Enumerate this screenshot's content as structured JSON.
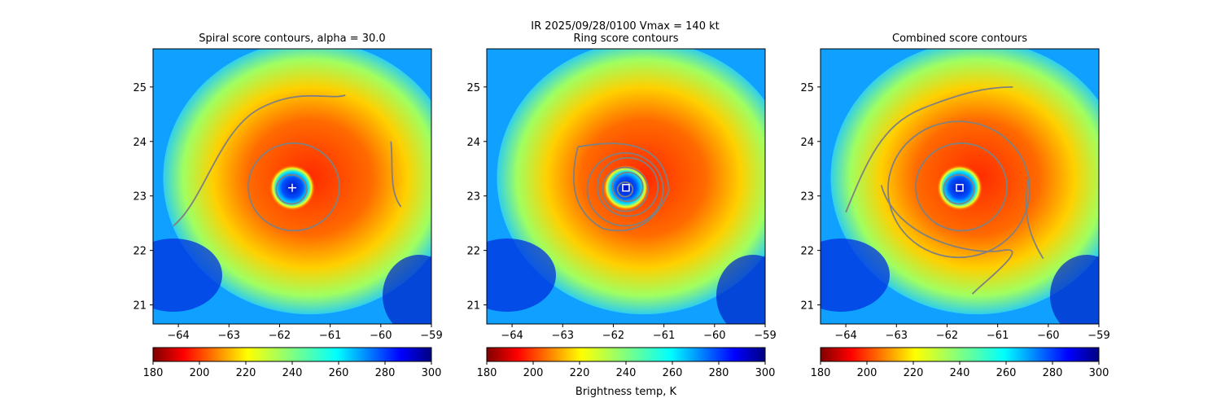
{
  "figure": {
    "suptitle_line1": "IR  2025/09/28/0100    Vmax = 140 kt",
    "colorbar_label": "Brightness temp, K"
  },
  "chart_data": [
    {
      "type": "heatmap",
      "title": "Spiral score contours, alpha = 30.0",
      "xlim": [
        -64.5,
        -59
      ],
      "ylim": [
        20.65,
        25.7
      ],
      "xticks": [
        -64,
        -63,
        -62,
        -61,
        -60,
        -59
      ],
      "yticks": [
        21,
        22,
        23,
        24,
        25
      ],
      "center": [
        -61.75,
        23.15
      ],
      "center_marker": "cross",
      "colorbar": {
        "min": 180,
        "max": 300,
        "ticks": [
          180,
          200,
          220,
          240,
          260,
          280,
          300
        ],
        "cmap": "jet_r"
      },
      "contour_color": "#808080",
      "rings_deg": [
        0.3,
        0.9
      ]
    },
    {
      "type": "heatmap",
      "title": "Ring score contours",
      "xlim": [
        -64.5,
        -59
      ],
      "ylim": [
        20.65,
        25.7
      ],
      "xticks": [
        -64,
        -63,
        -62,
        -61,
        -60,
        -59
      ],
      "yticks": [
        21,
        22,
        23,
        24,
        25
      ],
      "center": [
        -61.75,
        23.15
      ],
      "center_marker": "square",
      "colorbar": {
        "min": 180,
        "max": 300,
        "ticks": [
          180,
          200,
          220,
          240,
          260,
          280,
          300
        ],
        "cmap": "jet_r"
      },
      "contour_color": "#808080",
      "rings_deg": [
        0.15,
        0.3,
        0.45,
        0.6,
        0.75
      ]
    },
    {
      "type": "heatmap",
      "title": "Combined score contours",
      "xlim": [
        -64.5,
        -59
      ],
      "ylim": [
        20.65,
        25.7
      ],
      "xticks": [
        -64,
        -63,
        -62,
        -61,
        -60,
        -59
      ],
      "yticks": [
        21,
        22,
        23,
        24,
        25
      ],
      "center": [
        -61.75,
        23.15
      ],
      "center_marker": "square",
      "colorbar": {
        "min": 180,
        "max": 300,
        "ticks": [
          180,
          200,
          220,
          240,
          260,
          280,
          300
        ],
        "cmap": "jet_r"
      },
      "contour_color": "#808080",
      "rings_deg": [
        0.3,
        0.9,
        1.4
      ]
    }
  ]
}
